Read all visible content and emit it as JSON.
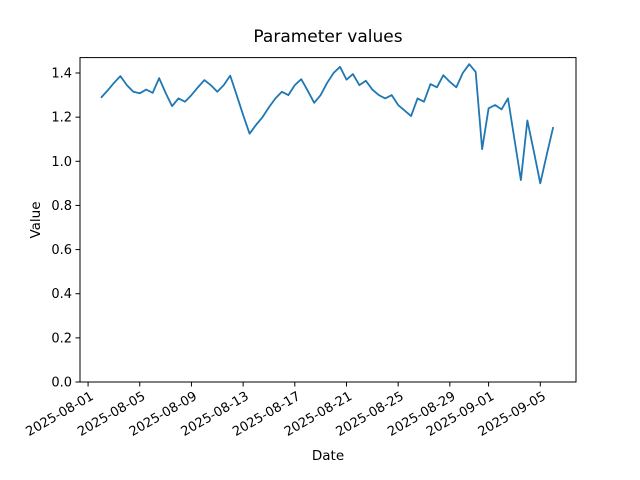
{
  "figure": {
    "title": "Parameter values",
    "xlabel": "Date",
    "ylabel": "Value"
  },
  "chart_data": {
    "type": "line",
    "title": "Parameter values",
    "xlabel": "Date",
    "ylabel": "Value",
    "line_color": "#1f77b4",
    "background": "#ffffff",
    "grid": false,
    "legend": null,
    "ylim": [
      0.0,
      1.468
    ],
    "y_ticks": [
      0.0,
      0.2,
      0.4,
      0.6,
      0.8,
      1.0,
      1.2,
      1.4
    ],
    "x_start_date": "2025-08-02",
    "x_end_date": "2025-09-06",
    "x_step_days": 0.5,
    "x_tick_labels": [
      "2025-08-01",
      "2025-08-05",
      "2025-08-09",
      "2025-08-13",
      "2025-08-17",
      "2025-08-21",
      "2025-08-25",
      "2025-08-29",
      "2025-09-01",
      "2025-09-05"
    ],
    "x_tick_day_offsets": [
      -1,
      3,
      7,
      11,
      15,
      19,
      23,
      27,
      30,
      34
    ],
    "values": [
      1.288,
      1.32,
      1.355,
      1.386,
      1.345,
      1.315,
      1.308,
      1.325,
      1.31,
      1.377,
      1.31,
      1.25,
      1.285,
      1.27,
      1.3,
      1.335,
      1.368,
      1.345,
      1.315,
      1.345,
      1.388,
      1.3,
      1.21,
      1.125,
      1.165,
      1.2,
      1.245,
      1.285,
      1.315,
      1.3,
      1.345,
      1.372,
      1.32,
      1.265,
      1.3,
      1.355,
      1.4,
      1.428,
      1.37,
      1.395,
      1.345,
      1.365,
      1.325,
      1.3,
      1.285,
      1.3,
      1.255,
      1.23,
      1.205,
      1.285,
      1.27,
      1.35,
      1.335,
      1.39,
      1.36,
      1.335,
      1.4,
      1.44,
      1.405,
      1.055,
      1.24,
      1.255,
      1.235,
      1.285,
      1.1,
      0.915,
      1.185,
      1.045,
      0.9,
      1.03,
      1.155
    ]
  }
}
